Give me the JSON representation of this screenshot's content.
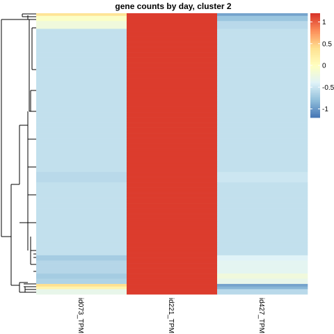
{
  "chart_data": {
    "type": "heatmap",
    "title": "gene counts by day, cluster 2",
    "columns": [
      "id073_TPM",
      "id221_TPM",
      "id427_TPM"
    ],
    "row_groups": [
      {
        "rows": 1,
        "values": [
          0.35,
          1.15,
          -0.95
        ]
      },
      {
        "rows": 2,
        "values": [
          -0.05,
          1.15,
          -0.75
        ]
      },
      {
        "rows": 3,
        "values": [
          -0.2,
          1.15,
          -0.6
        ]
      },
      {
        "rows": 55,
        "values": [
          -0.55,
          1.15,
          -0.55
        ]
      },
      {
        "rows": 4,
        "values": [
          -0.6,
          1.15,
          -0.5
        ]
      },
      {
        "rows": 28,
        "values": [
          -0.55,
          1.15,
          -0.55
        ]
      },
      {
        "rows": 2,
        "values": [
          -0.7,
          1.15,
          -0.4
        ]
      },
      {
        "rows": 5,
        "values": [
          -0.62,
          1.15,
          -0.35
        ]
      },
      {
        "rows": 2,
        "values": [
          -0.7,
          1.15,
          -0.2
        ]
      },
      {
        "rows": 2,
        "values": [
          -0.65,
          1.15,
          -0.3
        ]
      },
      {
        "rows": 1,
        "values": [
          0.4,
          1.15,
          -0.95
        ]
      },
      {
        "rows": 1,
        "values": [
          0.15,
          1.15,
          -0.85
        ]
      },
      {
        "rows": 2,
        "values": [
          -0.3,
          1.15,
          -0.6
        ]
      }
    ],
    "legend": {
      "ticks": [
        1,
        0.5,
        0,
        -0.5,
        -1
      ],
      "range": [
        -1.2,
        1.2
      ],
      "colors": [
        "#4575B4",
        "#91BFDB",
        "#E0F3F8",
        "#FFFFBF",
        "#FEE090",
        "#FC8D59",
        "#D73027"
      ]
    },
    "dendrogram": "row"
  }
}
